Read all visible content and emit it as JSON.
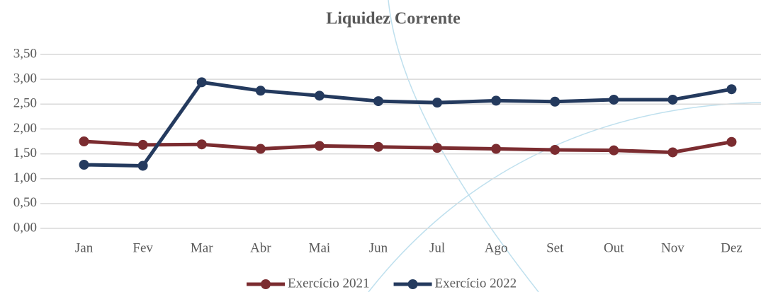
{
  "chart_data": {
    "type": "line",
    "title": "Liquidez Corrente",
    "categories": [
      "Jan",
      "Fev",
      "Mar",
      "Abr",
      "Mai",
      "Jun",
      "Jul",
      "Ago",
      "Set",
      "Out",
      "Nov",
      "Dez"
    ],
    "series": [
      {
        "name": "Exercício 2021",
        "color": "#7b2c30",
        "values": [
          1.75,
          1.68,
          1.69,
          1.6,
          1.66,
          1.64,
          1.62,
          1.6,
          1.58,
          1.57,
          1.53,
          1.74
        ]
      },
      {
        "name": "Exercício 2022",
        "color": "#243a5e",
        "values": [
          1.28,
          1.26,
          2.94,
          2.77,
          2.67,
          2.56,
          2.53,
          2.57,
          2.55,
          2.59,
          2.59,
          2.8
        ]
      }
    ],
    "ylim": [
      0,
      3.5
    ],
    "yticks": [
      {
        "value": 0,
        "label": "0,00"
      },
      {
        "value": 0.5,
        "label": "0,50"
      },
      {
        "value": 1,
        "label": "1,00"
      },
      {
        "value": 1.5,
        "label": "1,50"
      },
      {
        "value": 2,
        "label": "2,00"
      },
      {
        "value": 2.5,
        "label": "2,50"
      },
      {
        "value": 3,
        "label": "3,00"
      },
      {
        "value": 3.5,
        "label": "3,50"
      }
    ],
    "grid": true,
    "legend": "bottom"
  }
}
